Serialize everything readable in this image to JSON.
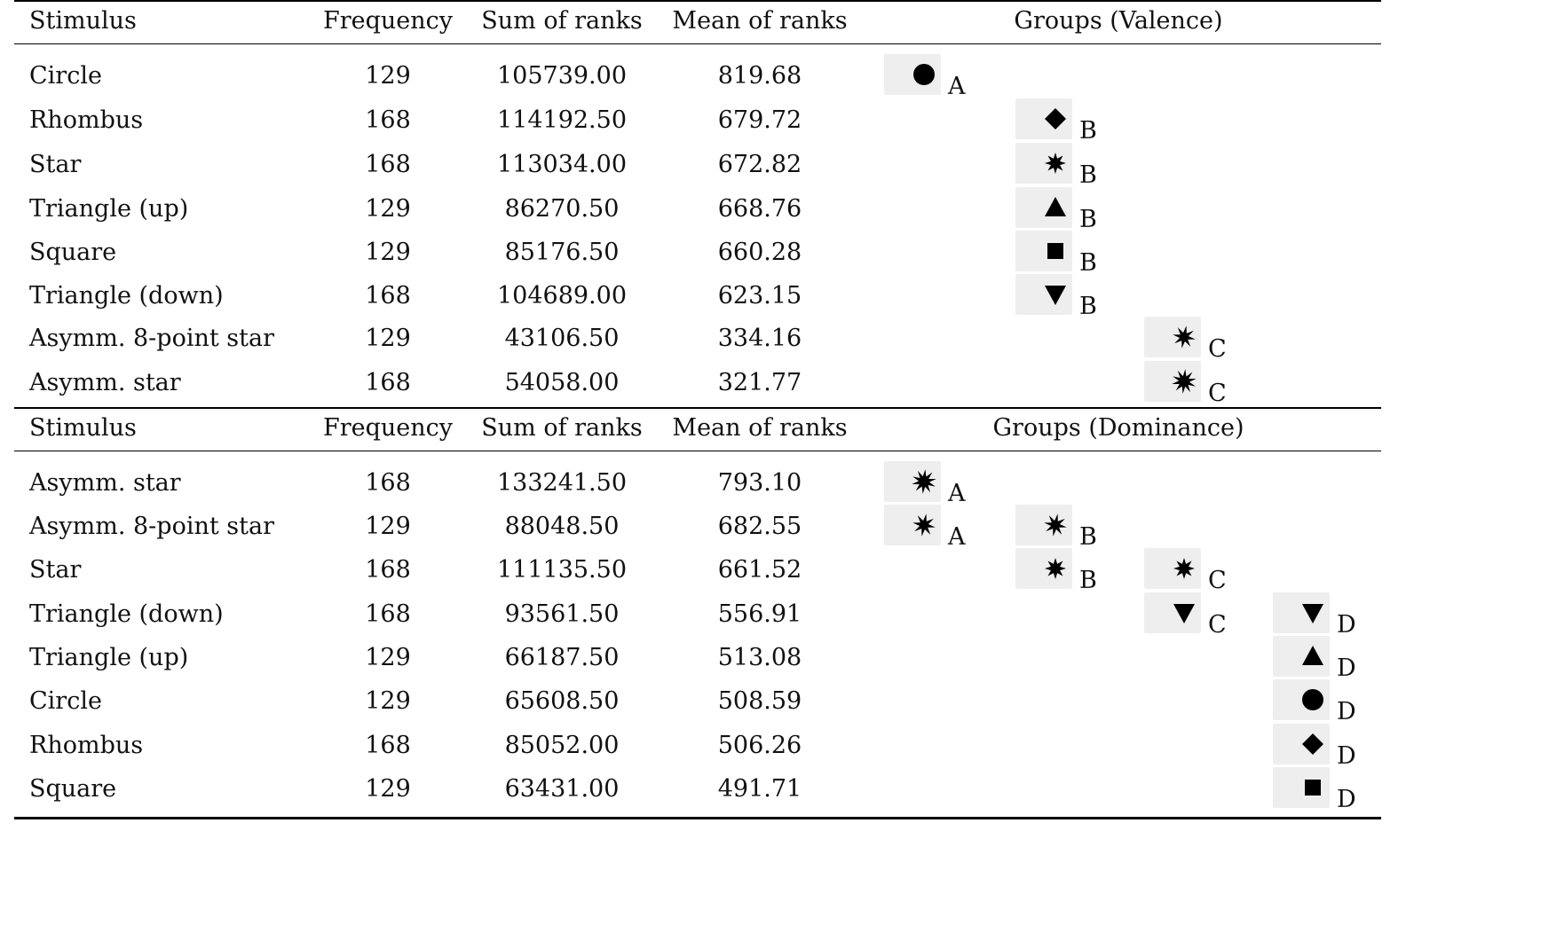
{
  "tables": [
    {
      "headers": [
        "Stimulus",
        "Frequency",
        "Sum of ranks",
        "Mean of ranks",
        "Groups (Valence)"
      ],
      "rows": [
        {
          "stimulus": "Circle",
          "frequency": "129",
          "sum": "105739.00",
          "mean": "819.68",
          "groups": [
            {
              "col": 0,
              "shape": "circle-icon",
              "letter": "A"
            }
          ]
        },
        {
          "stimulus": "Rhombus",
          "frequency": "168",
          "sum": "114192.50",
          "mean": "679.72",
          "groups": [
            {
              "col": 1,
              "shape": "diamond-icon",
              "letter": "B"
            }
          ]
        },
        {
          "stimulus": "Star",
          "frequency": "168",
          "sum": "113034.00",
          "mean": "672.82",
          "groups": [
            {
              "col": 1,
              "shape": "star-icon",
              "letter": "B"
            }
          ]
        },
        {
          "stimulus": "Triangle (up)",
          "frequency": "129",
          "sum": "86270.50",
          "mean": "668.76",
          "groups": [
            {
              "col": 1,
              "shape": "triangle-up-icon",
              "letter": "B"
            }
          ]
        },
        {
          "stimulus": "Square",
          "frequency": "129",
          "sum": "85176.50",
          "mean": "660.28",
          "groups": [
            {
              "col": 1,
              "shape": "square-icon",
              "letter": "B"
            }
          ]
        },
        {
          "stimulus": "Triangle (down)",
          "frequency": "168",
          "sum": "104689.00",
          "mean": "623.15",
          "groups": [
            {
              "col": 1,
              "shape": "triangle-down-icon",
              "letter": "B"
            }
          ]
        },
        {
          "stimulus": "Asymm. 8-point star",
          "frequency": "129",
          "sum": "43106.50",
          "mean": "334.16",
          "groups": [
            {
              "col": 2,
              "shape": "eight-point-star-icon",
              "letter": "C"
            }
          ]
        },
        {
          "stimulus": "Asymm. star",
          "frequency": "168",
          "sum": "54058.00",
          "mean": "321.77",
          "groups": [
            {
              "col": 2,
              "shape": "asymm-star-icon",
              "letter": "C"
            }
          ]
        }
      ]
    },
    {
      "headers": [
        "Stimulus",
        "Frequency",
        "Sum of ranks",
        "Mean of ranks",
        "Groups (Dominance)"
      ],
      "rows": [
        {
          "stimulus": "Asymm. star",
          "frequency": "168",
          "sum": "133241.50",
          "mean": "793.10",
          "groups": [
            {
              "col": 0,
              "shape": "asymm-star-icon",
              "letter": "A"
            }
          ]
        },
        {
          "stimulus": "Asymm. 8-point star",
          "frequency": "129",
          "sum": "88048.50",
          "mean": "682.55",
          "groups": [
            {
              "col": 0,
              "shape": "eight-point-star-icon",
              "letter": "A"
            },
            {
              "col": 1,
              "shape": "eight-point-star-icon",
              "letter": "B"
            }
          ]
        },
        {
          "stimulus": "Star",
          "frequency": "168",
          "sum": "111135.50",
          "mean": "661.52",
          "groups": [
            {
              "col": 1,
              "shape": "star-icon",
              "letter": "B"
            },
            {
              "col": 2,
              "shape": "star-icon",
              "letter": "C"
            }
          ]
        },
        {
          "stimulus": "Triangle (down)",
          "frequency": "168",
          "sum": "93561.50",
          "mean": "556.91",
          "groups": [
            {
              "col": 2,
              "shape": "triangle-down-icon",
              "letter": "C"
            },
            {
              "col": 3,
              "shape": "triangle-down-icon",
              "letter": "D"
            }
          ]
        },
        {
          "stimulus": "Triangle (up)",
          "frequency": "129",
          "sum": "66187.50",
          "mean": "513.08",
          "groups": [
            {
              "col": 3,
              "shape": "triangle-up-icon",
              "letter": "D"
            }
          ]
        },
        {
          "stimulus": "Circle",
          "frequency": "129",
          "sum": "65608.50",
          "mean": "508.59",
          "groups": [
            {
              "col": 3,
              "shape": "circle-icon",
              "letter": "D"
            }
          ]
        },
        {
          "stimulus": "Rhombus",
          "frequency": "168",
          "sum": "85052.00",
          "mean": "506.26",
          "groups": [
            {
              "col": 3,
              "shape": "diamond-icon",
              "letter": "D"
            }
          ]
        },
        {
          "stimulus": "Square",
          "frequency": "129",
          "sum": "63431.00",
          "mean": "491.71",
          "groups": [
            {
              "col": 3,
              "shape": "square-icon",
              "letter": "D"
            }
          ]
        }
      ]
    }
  ]
}
